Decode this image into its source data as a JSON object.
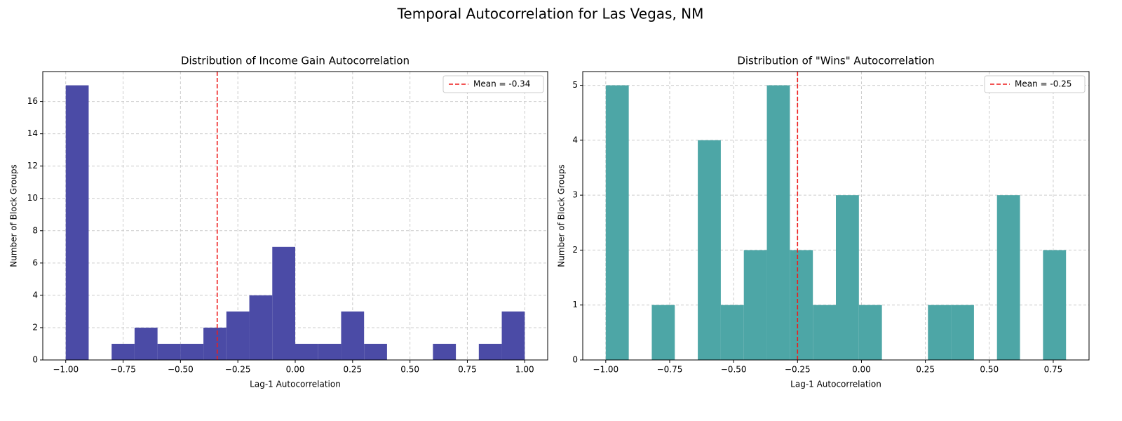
{
  "title": "Temporal Autocorrelation for Las Vegas, NM",
  "chart_data": [
    {
      "type": "histogram",
      "title": "Distribution of Income Gain Autocorrelation",
      "xlabel": "Lag-1 Autocorrelation",
      "ylabel": "Number of Block Groups",
      "bins": [
        -1,
        -0.9,
        -0.8,
        -0.7,
        -0.6,
        -0.5,
        -0.4,
        -0.3,
        -0.2,
        -0.1,
        0,
        0.1,
        0.2,
        0.3,
        0.4,
        0.5,
        0.6,
        0.7,
        0.8,
        0.9,
        1
      ],
      "counts": [
        17,
        0,
        1,
        2,
        1,
        1,
        2,
        3,
        4,
        7,
        1,
        1,
        3,
        1,
        0,
        0,
        1,
        0,
        1,
        3
      ],
      "color": "#4b4ba6",
      "mean": -0.34,
      "mean_label": "Mean = -0.34",
      "mean_color": "#ee1c1c",
      "xlim": [
        -1.1,
        1.1
      ],
      "ylim": [
        0,
        17.85
      ],
      "xticks": [
        {
          "value": -1,
          "label": "−1.00"
        },
        {
          "value": -0.75,
          "label": "−0.75"
        },
        {
          "value": -0.5,
          "label": "−0.50"
        },
        {
          "value": -0.25,
          "label": "−0.25"
        },
        {
          "value": 0,
          "label": "0.00"
        },
        {
          "value": 0.25,
          "label": "0.25"
        },
        {
          "value": 0.5,
          "label": "0.50"
        },
        {
          "value": 0.75,
          "label": "0.75"
        },
        {
          "value": 1,
          "label": "1.00"
        }
      ],
      "yticks": [
        0,
        2,
        4,
        6,
        8,
        10,
        12,
        14,
        16
      ],
      "grid": true,
      "legend": "upper right"
    },
    {
      "type": "histogram",
      "title": "Distribution of \"Wins\" Autocorrelation",
      "xlabel": "Lag-1 Autocorrelation",
      "ylabel": "Number of Block Groups",
      "bins": [
        -1,
        -0.91,
        -0.82,
        -0.73,
        -0.64,
        -0.55,
        -0.46,
        -0.37,
        -0.28,
        -0.19,
        -0.1,
        -0.01,
        0.08,
        0.17,
        0.26,
        0.35,
        0.44,
        0.53,
        0.62,
        0.71,
        0.8
      ],
      "counts": [
        5,
        0,
        1,
        0,
        4,
        1,
        2,
        5,
        2,
        1,
        3,
        1,
        0,
        0,
        1,
        1,
        0,
        3,
        0,
        2
      ],
      "color": "#4da6a6",
      "mean": -0.25,
      "mean_label": "Mean = -0.25",
      "mean_color": "#ee1c1c",
      "xlim": [
        -1.09,
        0.89
      ],
      "ylim": [
        0,
        5.25
      ],
      "xticks": [
        {
          "value": -1,
          "label": "−1.00"
        },
        {
          "value": -0.75,
          "label": "−0.75"
        },
        {
          "value": -0.5,
          "label": "−0.50"
        },
        {
          "value": -0.25,
          "label": "−0.25"
        },
        {
          "value": 0,
          "label": "0.00"
        },
        {
          "value": 0.25,
          "label": "0.25"
        },
        {
          "value": 0.5,
          "label": "0.50"
        },
        {
          "value": 0.75,
          "label": "0.75"
        }
      ],
      "yticks": [
        0,
        1,
        2,
        3,
        4,
        5
      ],
      "grid": true,
      "legend": "upper right"
    }
  ]
}
